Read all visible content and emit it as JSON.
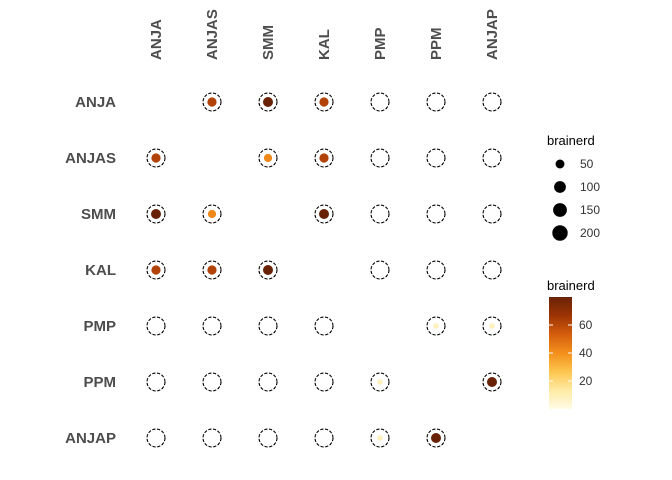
{
  "chart_data": {
    "type": "scatter",
    "subtype": "correlation-matrix-dots",
    "categories": [
      "ANJA",
      "ANJAS",
      "SMM",
      "KAL",
      "PMP",
      "PPM",
      "ANJAP"
    ],
    "cells": [
      {
        "row": "ANJA",
        "col": "ANJAS",
        "value": 62
      },
      {
        "row": "ANJA",
        "col": "SMM",
        "value": 80
      },
      {
        "row": "ANJA",
        "col": "KAL",
        "value": 62
      },
      {
        "row": "ANJA",
        "col": "PMP",
        "value": 0
      },
      {
        "row": "ANJA",
        "col": "PPM",
        "value": 0
      },
      {
        "row": "ANJA",
        "col": "ANJAP",
        "value": 0
      },
      {
        "row": "ANJAS",
        "col": "ANJA",
        "value": 62
      },
      {
        "row": "ANJAS",
        "col": "SMM",
        "value": 42
      },
      {
        "row": "ANJAS",
        "col": "KAL",
        "value": 62
      },
      {
        "row": "ANJAS",
        "col": "PMP",
        "value": 0
      },
      {
        "row": "ANJAS",
        "col": "PPM",
        "value": 0
      },
      {
        "row": "ANJAS",
        "col": "ANJAP",
        "value": 0
      },
      {
        "row": "SMM",
        "col": "ANJA",
        "value": 80
      },
      {
        "row": "SMM",
        "col": "ANJAS",
        "value": 42
      },
      {
        "row": "SMM",
        "col": "KAL",
        "value": 80
      },
      {
        "row": "SMM",
        "col": "PMP",
        "value": 0
      },
      {
        "row": "SMM",
        "col": "PPM",
        "value": 0
      },
      {
        "row": "SMM",
        "col": "ANJAP",
        "value": 0
      },
      {
        "row": "KAL",
        "col": "ANJA",
        "value": 62
      },
      {
        "row": "KAL",
        "col": "ANJAS",
        "value": 62
      },
      {
        "row": "KAL",
        "col": "SMM",
        "value": 80
      },
      {
        "row": "KAL",
        "col": "PMP",
        "value": 0
      },
      {
        "row": "KAL",
        "col": "PPM",
        "value": 0
      },
      {
        "row": "KAL",
        "col": "ANJAP",
        "value": 0
      },
      {
        "row": "PMP",
        "col": "ANJA",
        "value": 0
      },
      {
        "row": "PMP",
        "col": "ANJAS",
        "value": 0
      },
      {
        "row": "PMP",
        "col": "SMM",
        "value": 0
      },
      {
        "row": "PMP",
        "col": "KAL",
        "value": 0
      },
      {
        "row": "PMP",
        "col": "PPM",
        "value": 8
      },
      {
        "row": "PMP",
        "col": "ANJAP",
        "value": 8
      },
      {
        "row": "PPM",
        "col": "ANJA",
        "value": 0
      },
      {
        "row": "PPM",
        "col": "ANJAS",
        "value": 0
      },
      {
        "row": "PPM",
        "col": "SMM",
        "value": 0
      },
      {
        "row": "PPM",
        "col": "KAL",
        "value": 0
      },
      {
        "row": "PPM",
        "col": "PMP",
        "value": 8
      },
      {
        "row": "PPM",
        "col": "ANJAP",
        "value": 80
      },
      {
        "row": "ANJAP",
        "col": "ANJA",
        "value": 0
      },
      {
        "row": "ANJAP",
        "col": "ANJAS",
        "value": 0
      },
      {
        "row": "ANJAP",
        "col": "SMM",
        "value": 0
      },
      {
        "row": "ANJAP",
        "col": "KAL",
        "value": 0
      },
      {
        "row": "ANJAP",
        "col": "PMP",
        "value": 8
      },
      {
        "row": "ANJAP",
        "col": "PPM",
        "value": 80
      }
    ],
    "size_legend": {
      "title": "brainerd",
      "breaks": [
        50,
        100,
        150,
        200
      ]
    },
    "color_legend": {
      "title": "brainerd",
      "breaks": [
        20,
        40,
        60
      ],
      "range": [
        0,
        80
      ]
    },
    "colors": {
      "gradient": [
        "#fffbe6",
        "#feeba4",
        "#fdc54f",
        "#f3901b",
        "#d55e0d",
        "#9c3405",
        "#6a2207"
      ],
      "ring": "#000000"
    },
    "grid": false,
    "legend_position": "right"
  }
}
